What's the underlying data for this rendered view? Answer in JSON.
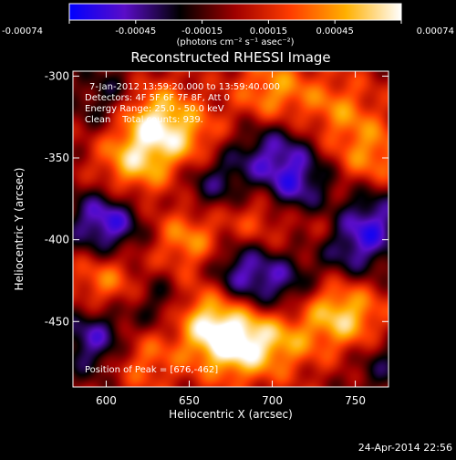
{
  "chart_data": {
    "type": "heatmap",
    "title": "Reconstructed RHESSI Image",
    "xlabel": "Heliocentric X (arcsec)",
    "ylabel": "Heliocentric Y (arcsec)",
    "xlim": [
      580,
      770
    ],
    "ylim": [
      -490,
      -297
    ],
    "x_ticks": [
      600,
      650,
      700,
      750
    ],
    "y_ticks": [
      -450,
      -400,
      -350,
      -300
    ],
    "colorbar": {
      "label": "(photons cm⁻² s⁻¹ asec⁻²)",
      "range": [
        -0.00074,
        0.00074
      ],
      "ticks": [
        "-0.00074",
        "-0.00045",
        "-0.00015",
        "0.00015",
        "0.00045",
        "0.00074"
      ],
      "colormap": [
        "#0000ff",
        "#5a0dc8",
        "#000000",
        "#a00000",
        "#ff3c00",
        "#ffb000",
        "#ffffff"
      ]
    },
    "annotations": {
      "time": "7-Jan-2012 13:59:20.000 to 13:59:40.000",
      "detectors": "Detectors: 4F 5F 6F 7F 8F, Att 0",
      "energy": "Energy Range: 25.0 - 50.0 keV",
      "clean": "Clean    Total counts: 939.",
      "peak": "Position of Peak = [676,-462]"
    },
    "hot_regions": [
      {
        "x": 676,
        "y": -462,
        "v": 1.0
      },
      {
        "x": 655,
        "y": -445,
        "v": 0.75
      },
      {
        "x": 625,
        "y": -325,
        "v": 0.85
      },
      {
        "x": 615,
        "y": -355,
        "v": 0.65
      },
      {
        "x": 650,
        "y": -340,
        "v": 0.55
      },
      {
        "x": 700,
        "y": -310,
        "v": 0.6
      },
      {
        "x": 735,
        "y": -440,
        "v": 0.65
      },
      {
        "x": 755,
        "y": -455,
        "v": 0.55
      },
      {
        "x": 600,
        "y": -425,
        "v": 0.6
      },
      {
        "x": 620,
        "y": -470,
        "v": 0.55
      },
      {
        "x": 650,
        "y": -400,
        "v": 0.6
      },
      {
        "x": 705,
        "y": -460,
        "v": 0.55
      },
      {
        "x": 760,
        "y": -350,
        "v": 0.55
      },
      {
        "x": 690,
        "y": -385,
        "v": 0.5
      },
      {
        "x": 730,
        "y": -390,
        "v": 0.5
      },
      {
        "x": 740,
        "y": -320,
        "v": 0.45
      }
    ],
    "cold_regions": [
      {
        "x": 600,
        "y": -390,
        "v": -0.85
      },
      {
        "x": 595,
        "y": -460,
        "v": -0.75
      },
      {
        "x": 680,
        "y": -420,
        "v": -0.7
      },
      {
        "x": 715,
        "y": -370,
        "v": -0.75
      },
      {
        "x": 665,
        "y": -365,
        "v": -0.6
      },
      {
        "x": 745,
        "y": -405,
        "v": -0.65
      },
      {
        "x": 700,
        "y": -345,
        "v": -0.55
      },
      {
        "x": 760,
        "y": -385,
        "v": -0.6
      },
      {
        "x": 635,
        "y": -440,
        "v": -0.6
      },
      {
        "x": 710,
        "y": -430,
        "v": -0.55
      },
      {
        "x": 605,
        "y": -315,
        "v": -0.5
      },
      {
        "x": 765,
        "y": -470,
        "v": -0.55
      }
    ]
  },
  "footer": {
    "timestamp": "24-Apr-2014 22:56"
  }
}
